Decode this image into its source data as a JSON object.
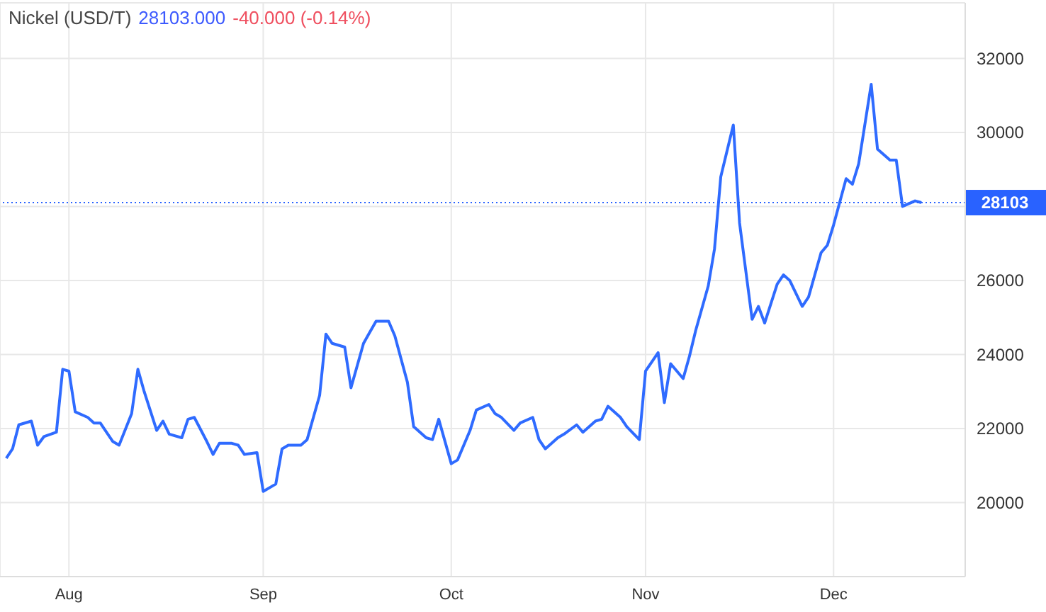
{
  "chart_data": {
    "type": "line",
    "title": "Nickel (USD/T)",
    "annotations": [
      "28103.000",
      "-40.000 (-0.14%)"
    ],
    "x": [
      "--07-22",
      "--07-23",
      "--07-24",
      "--07-26",
      "--07-27",
      "--07-28",
      "--07-30",
      "--07-31",
      "--08-01",
      "--08-02",
      "--08-04",
      "--08-05",
      "--08-06",
      "--08-08",
      "--08-09",
      "--08-11",
      "--08-12",
      "--08-13",
      "--08-15",
      "--08-16",
      "--08-17",
      "--08-19",
      "--08-20",
      "--08-21",
      "--08-23",
      "--08-24",
      "--08-25",
      "--08-27",
      "--08-28",
      "--08-29",
      "--08-31",
      "--09-01",
      "--09-03",
      "--09-04",
      "--09-05",
      "--09-07",
      "--09-08",
      "--09-10",
      "--09-11",
      "--09-12",
      "--09-14",
      "--09-15",
      "--09-17",
      "--09-18",
      "--09-19",
      "--09-21",
      "--09-22",
      "--09-24",
      "--09-25",
      "--09-27",
      "--09-28",
      "--09-29",
      "--10-01",
      "--10-02",
      "--10-04",
      "--10-05",
      "--10-07",
      "--10-08",
      "--10-09",
      "--10-11",
      "--10-12",
      "--10-14",
      "--10-15",
      "--10-16",
      "--10-18",
      "--10-19",
      "--10-21",
      "--10-22",
      "--10-24",
      "--10-25",
      "--10-26",
      "--10-28",
      "--10-29",
      "--10-31",
      "--11-01",
      "--11-03",
      "--11-04",
      "--11-05",
      "--11-07",
      "--11-08",
      "--11-09",
      "--11-11",
      "--11-12",
      "--11-13",
      "--11-15",
      "--11-16",
      "--11-18",
      "--11-19",
      "--11-20",
      "--11-22",
      "--11-23",
      "--11-24",
      "--11-26",
      "--11-27",
      "--11-29",
      "--11-30",
      "--12-01",
      "--12-03",
      "--12-04",
      "--12-05",
      "--12-07",
      "--12-08",
      "--12-10",
      "--12-11",
      "--12-12",
      "--12-14",
      "--12-15"
    ],
    "series": [
      {
        "color": "#2f6bff",
        "values": [
          21200,
          21450,
          22100,
          22200,
          21550,
          21780,
          21900,
          23600,
          23550,
          22450,
          22300,
          22150,
          22150,
          21650,
          21550,
          22400,
          23600,
          23000,
          21950,
          22200,
          21850,
          21750,
          22250,
          22300,
          21650,
          21300,
          21600,
          21600,
          21550,
          21300,
          21350,
          20300,
          20500,
          21450,
          21550,
          21550,
          21700,
          22900,
          24550,
          24300,
          24200,
          23100,
          24300,
          24600,
          24900,
          24900,
          24500,
          23250,
          22050,
          21750,
          21700,
          22250,
          21050,
          21150,
          21950,
          22500,
          22650,
          22400,
          22300,
          21950,
          22150,
          22300,
          21700,
          21450,
          21750,
          21850,
          22100,
          21900,
          22200,
          22250,
          22600,
          22300,
          22050,
          21700,
          23550,
          24050,
          22700,
          23750,
          23350,
          23950,
          24650,
          25850,
          26850,
          28800,
          30200,
          27550,
          24950,
          25300,
          24850,
          25900,
          26150,
          26000,
          25300,
          25550,
          26750,
          26950,
          27500,
          28750,
          28600,
          29150,
          31300,
          29550,
          29250,
          29250,
          28000,
          28150,
          28103
        ]
      }
    ],
    "xlim": [
      "--07-21",
      "--12-22"
    ],
    "xticks": [
      {
        "value": "--08-01",
        "label": "Aug"
      },
      {
        "value": "--09-01",
        "label": "Sep"
      },
      {
        "value": "--10-01",
        "label": "Oct"
      },
      {
        "value": "--11-01",
        "label": "Nov"
      },
      {
        "value": "--12-01",
        "label": "Dec"
      }
    ],
    "ylim": [
      18000,
      33500
    ],
    "yticks": [
      20000,
      22000,
      24000,
      26000,
      {
        "value": 28000,
        "label": null
      },
      30000,
      32000
    ],
    "ref_lines": [
      {
        "axis": "y",
        "value": 28103,
        "label": "28103",
        "color": "#2962ff",
        "line_style": "dotted"
      }
    ],
    "grid": true,
    "legend": false,
    "marker": "none",
    "line_style": "solid"
  }
}
